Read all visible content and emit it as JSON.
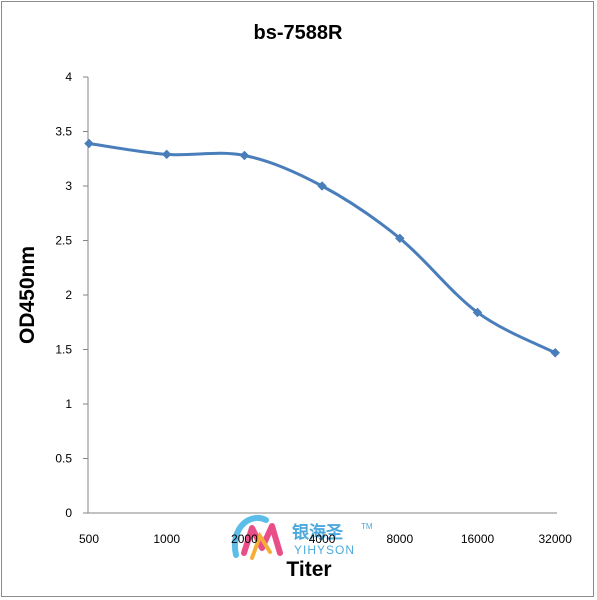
{
  "chart_data": {
    "type": "line",
    "title": "bs-7588R",
    "xlabel": "Titer",
    "ylabel": "OD450nm",
    "categories": [
      "500",
      "1000",
      "2000",
      "4000",
      "8000",
      "16000",
      "32000"
    ],
    "series": [
      {
        "values": [
          3.39,
          3.29,
          3.28,
          3.0,
          2.52,
          1.84,
          1.47
        ]
      }
    ],
    "ylim": [
      0,
      4
    ],
    "yticks": [
      "0",
      "0.5",
      "1",
      "1.5",
      "2",
      "2.5",
      "3",
      "3.5",
      "4"
    ],
    "grid": false,
    "legend": "none",
    "colors": {
      "line": "#4a7ebb",
      "marker": "#4a7ebb",
      "axis": "#868686"
    }
  },
  "watermark": {
    "chinese": "银海圣",
    "english": "YIHYSON",
    "trademark": "TM",
    "colors": {
      "text": "#3aa0d8",
      "accent1": "#e73b7c",
      "accent2": "#f5a623",
      "accent3": "#4bb8e6"
    }
  }
}
